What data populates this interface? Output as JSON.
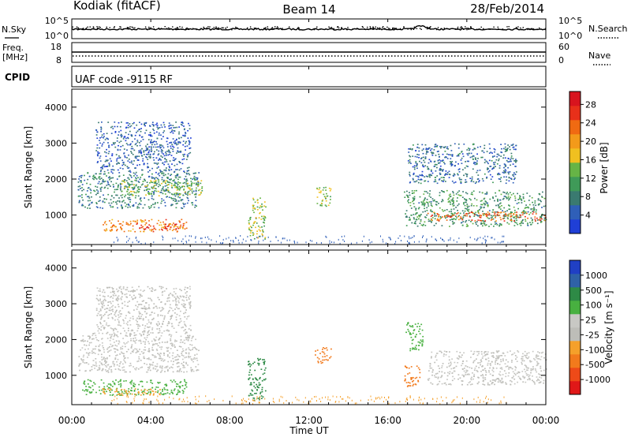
{
  "header": {
    "station": "Kodiak (fitACF)",
    "beam": "Beam 14",
    "date": "28/Feb/2014"
  },
  "top_panels": {
    "nsky_label": "N.Sky",
    "nsearch_label": "N.Search",
    "nsky_ticks": [
      "10^5",
      "10^0"
    ],
    "freq_label_1": "Freq.",
    "freq_label_2": "[MHz]",
    "freq_ticks": [
      "18",
      "8"
    ],
    "nave_label": "Nave",
    "nave_ticks": [
      "60",
      "0"
    ],
    "cpid_label": "CPID",
    "cpid_text": "UAF code -9115 RF"
  },
  "colors": {
    "power_scale": [
      "#1f3fd6",
      "#2f5fb8",
      "#3a7a70",
      "#3f9a58",
      "#66b446",
      "#f0c020",
      "#f39a1a",
      "#f06a12",
      "#e8301a",
      "#d8141e"
    ],
    "velocity_scale": [
      "#e01818",
      "#ee4a18",
      "#f27a1c",
      "#f5a02a",
      "#bdbdb8",
      "#c8c8c4",
      "#48b040",
      "#2e8a46",
      "#2f62a6",
      "#2040c4"
    ]
  },
  "chart_data": [
    {
      "type": "heatmap",
      "title": "Power",
      "ylabel": "Slant Range [km]",
      "yticks": [
        "1000",
        "2000",
        "3000",
        "4000"
      ],
      "colorbar_label": "Power [dB]",
      "colorbar_ticks": [
        "4",
        "8",
        "12",
        "16",
        "20",
        "24",
        "28"
      ],
      "x": [
        "00:00",
        "04:00",
        "08:00",
        "12:00",
        "16:00",
        "20:00",
        "00:00"
      ],
      "ylim": [
        180,
        4500
      ],
      "clim": [
        0,
        31
      ],
      "echo_regions": [
        {
          "t0": 0.3,
          "t1": 6.4,
          "r0": 1200,
          "r1": 2200,
          "v": 8
        },
        {
          "t0": 2.5,
          "t1": 6.6,
          "r0": 1550,
          "r1": 2000,
          "v": 14
        },
        {
          "t0": 1.5,
          "t1": 5.8,
          "r0": 550,
          "r1": 900,
          "v": 22
        },
        {
          "t0": 3.4,
          "t1": 5.3,
          "r0": 600,
          "r1": 780,
          "v": 27
        },
        {
          "t0": 1.2,
          "t1": 6.0,
          "r0": 2200,
          "r1": 3600,
          "v": 5
        },
        {
          "t0": 8.9,
          "t1": 9.8,
          "r0": 350,
          "r1": 1500,
          "v": 15
        },
        {
          "t0": 12.3,
          "t1": 13.1,
          "r0": 1250,
          "r1": 1800,
          "v": 14
        },
        {
          "t0": 16.8,
          "t1": 24.0,
          "r0": 700,
          "r1": 1700,
          "v": 10
        },
        {
          "t0": 18.0,
          "t1": 24.0,
          "r0": 850,
          "r1": 1100,
          "v": 24
        },
        {
          "t0": 17.0,
          "t1": 22.5,
          "r0": 1900,
          "r1": 3000,
          "v": 6
        }
      ]
    },
    {
      "type": "heatmap",
      "title": "Velocity",
      "ylabel": "Slant Range [km]",
      "yticks": [
        "1000",
        "2000",
        "3000",
        "4000"
      ],
      "colorbar_label": "Velocity [m s⁻¹]",
      "colorbar_ticks": [
        "1000",
        "500",
        "100",
        "25",
        "-25",
        "-100",
        "-500",
        "-1000"
      ],
      "x": [
        "00:00",
        "04:00",
        "08:00",
        "12:00",
        "16:00",
        "20:00",
        "00:00"
      ],
      "xlabel": "Time UT",
      "ylim": [
        180,
        4500
      ],
      "echo_regions": [
        {
          "t0": 0.3,
          "t1": 6.4,
          "r0": 1100,
          "r1": 2200,
          "v": 0
        },
        {
          "t0": 1.2,
          "t1": 6.0,
          "r0": 2200,
          "r1": 3500,
          "v": 0
        },
        {
          "t0": 0.5,
          "t1": 5.8,
          "r0": 450,
          "r1": 900,
          "v": 60
        },
        {
          "t0": 1.5,
          "t1": 4.5,
          "r0": 450,
          "r1": 650,
          "v": -90
        },
        {
          "t0": 8.9,
          "t1": 9.8,
          "r0": 300,
          "r1": 1500,
          "v": 120
        },
        {
          "t0": 12.3,
          "t1": 13.1,
          "r0": 1350,
          "r1": 1800,
          "v": -300
        },
        {
          "t0": 16.8,
          "t1": 17.6,
          "r0": 700,
          "r1": 1300,
          "v": -300
        },
        {
          "t0": 16.9,
          "t1": 17.8,
          "r0": 1700,
          "r1": 2500,
          "v": 80
        },
        {
          "t0": 18.0,
          "t1": 24.0,
          "r0": 750,
          "r1": 1700,
          "v": 0
        }
      ]
    }
  ]
}
